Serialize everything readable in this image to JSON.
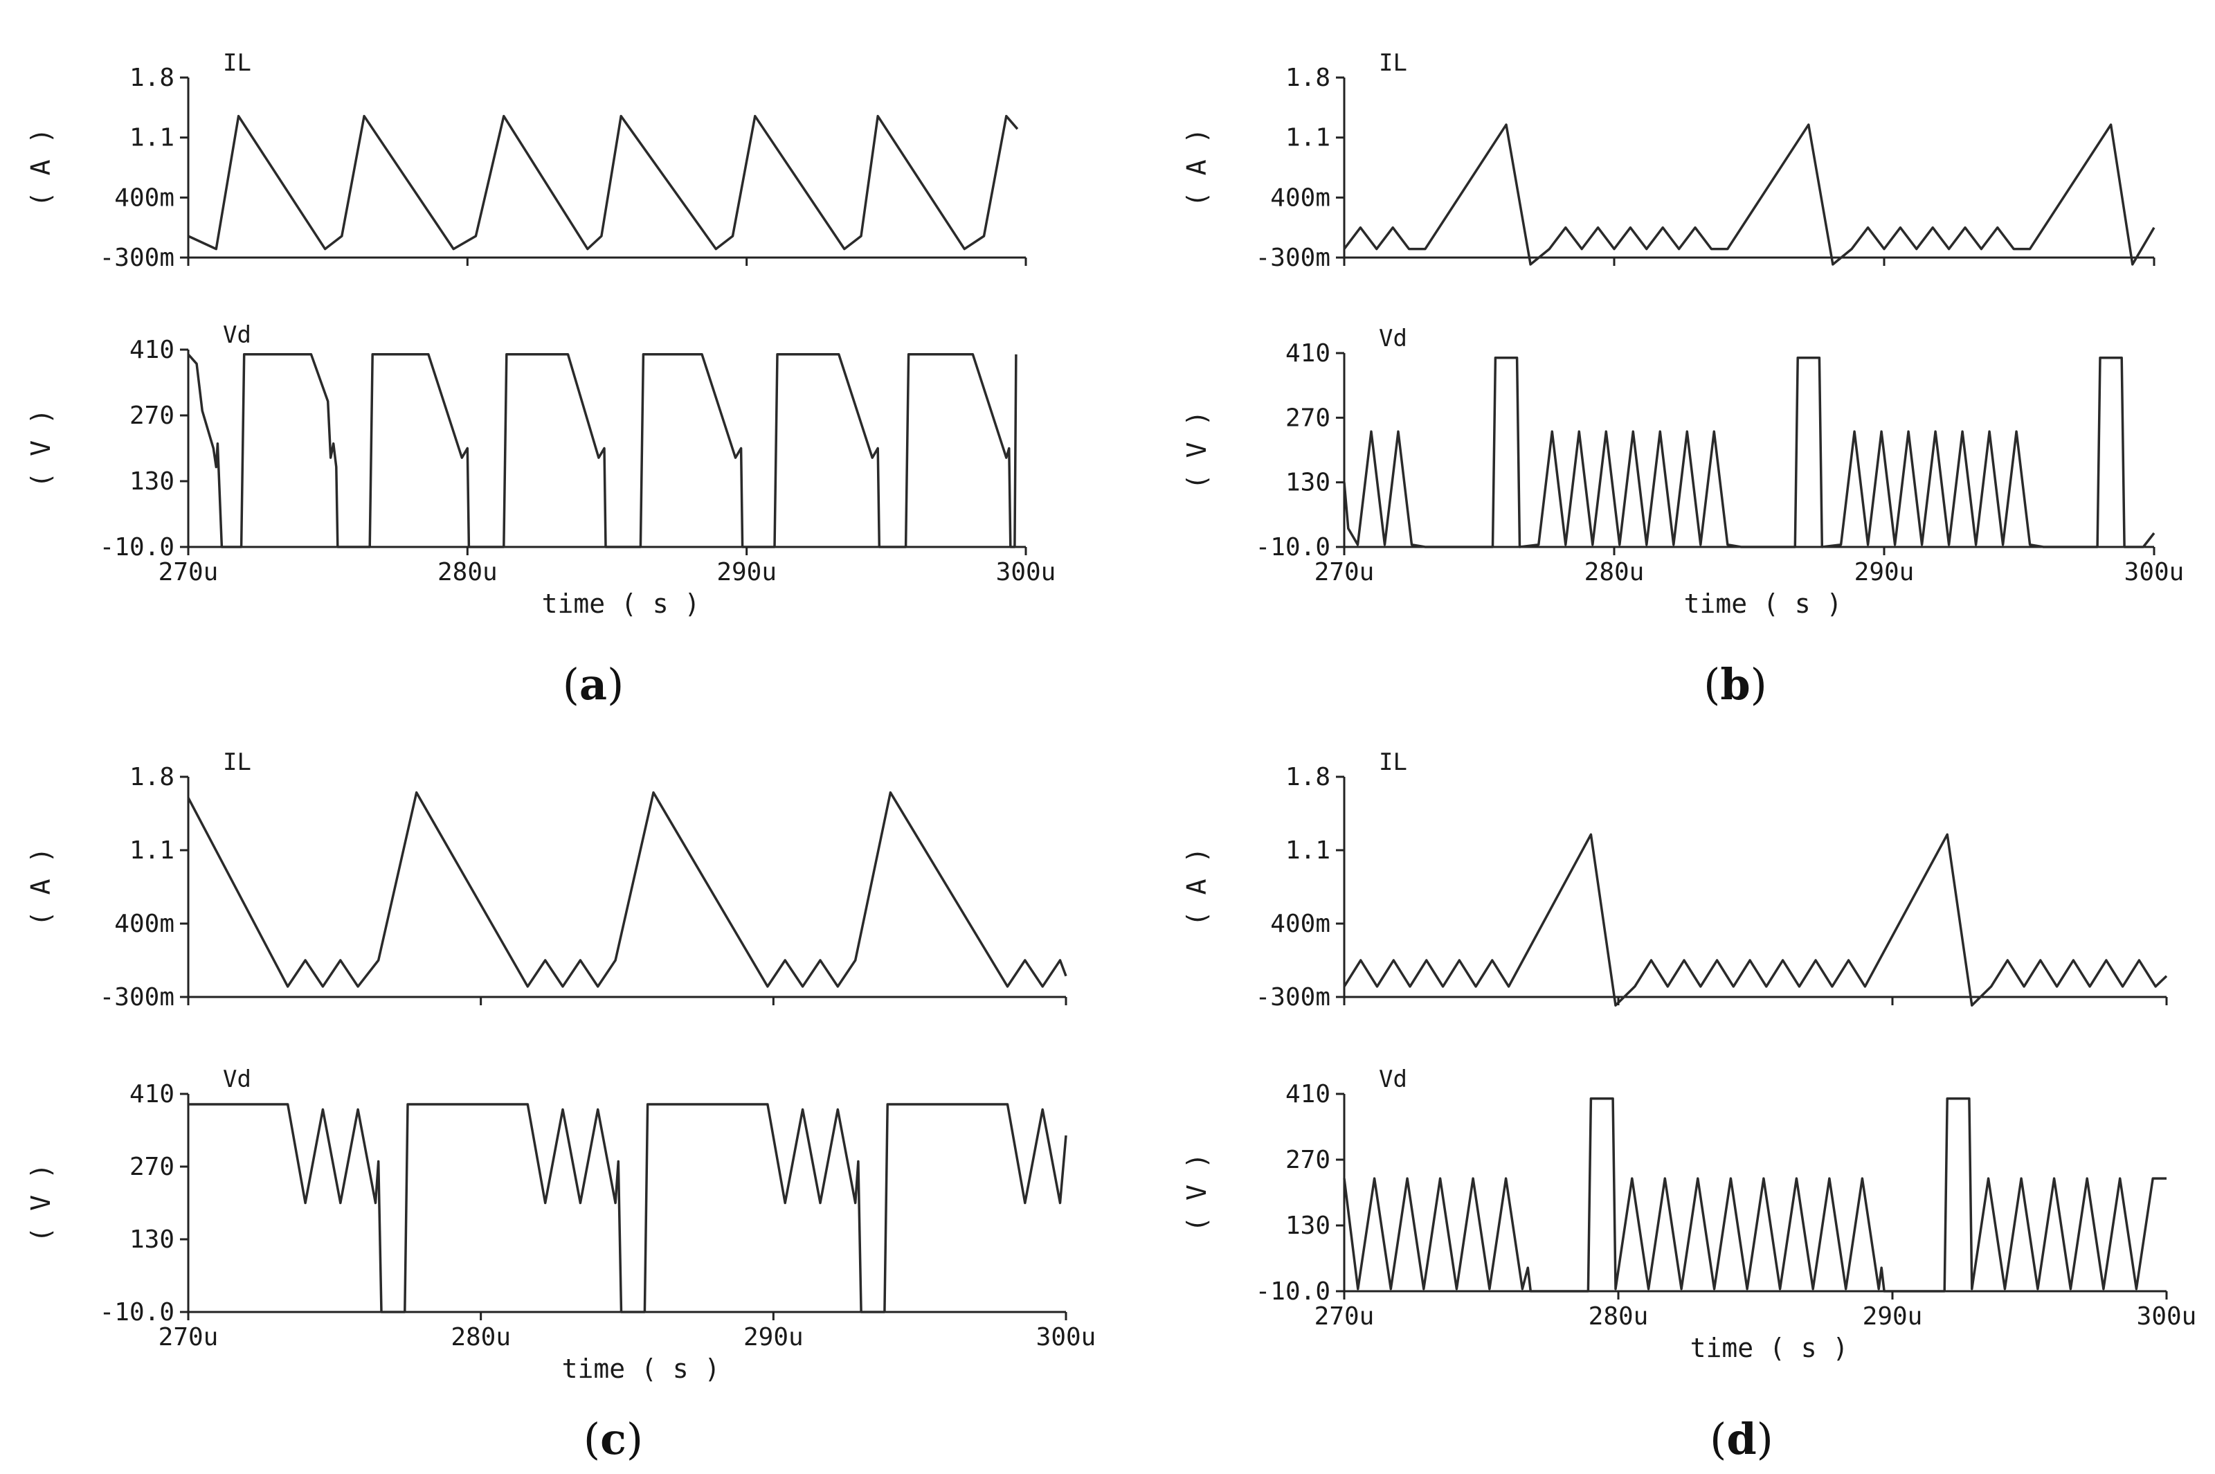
{
  "chart_data": [
    {
      "panel": "a",
      "type": "line",
      "caption_letter": "a",
      "xlabel": "time ( s )",
      "xlim": [
        270,
        300
      ],
      "x_unit": "u",
      "x_ticks": [
        "270u",
        "280u",
        "290u",
        "300u"
      ],
      "subplots": [
        {
          "name": "IL",
          "unit_label": "( A )",
          "ylim": [
            -0.3,
            1.8
          ],
          "y_ticks": [
            "1.8",
            "1.1",
            "400m",
            "-300m"
          ],
          "series": [
            {
              "name": "IL",
              "x": [
                270,
                271,
                271.8,
                274.9,
                275.5,
                276.3,
                279.5,
                280.3,
                281.3,
                284.3,
                284.8,
                285.5,
                288.9,
                289.5,
                290.3,
                293.5,
                294.1,
                294.7,
                297.8,
                298.5,
                299.3,
                299.7
              ],
              "y": [
                -0.05,
                -0.2,
                1.35,
                -0.2,
                -0.05,
                1.35,
                -0.2,
                -0.05,
                1.35,
                -0.2,
                -0.05,
                1.35,
                -0.2,
                -0.05,
                1.35,
                -0.2,
                -0.05,
                1.35,
                -0.2,
                -0.05,
                1.35,
                1.2
              ]
            }
          ]
        },
        {
          "name": "Vd",
          "unit_label": "( V )",
          "ylim": [
            -10,
            410
          ],
          "y_ticks": [
            "410",
            "270",
            "130",
            "-10.0"
          ],
          "series": [
            {
              "name": "Vd",
              "x": [
                270,
                270.3,
                270.5,
                270.9,
                271,
                271.05,
                271.2,
                271.9,
                272,
                274.4,
                275,
                275.1,
                275.2,
                275.3,
                275.35,
                276.5,
                276.6,
                278.6,
                279.8,
                280,
                280.05,
                281.3,
                281.4,
                283.6,
                284.7,
                284.9,
                284.95,
                286.2,
                286.3,
                288.4,
                289.6,
                289.8,
                289.85,
                291,
                291.1,
                293.3,
                294.5,
                294.7,
                294.75,
                295.7,
                295.8,
                298.1,
                299.3,
                299.4,
                299.45,
                299.6,
                299.65
              ],
              "y": [
                400,
                380,
                280,
                200,
                160,
                210,
                -10,
                -10,
                400,
                400,
                300,
                180,
                210,
                160,
                -10,
                -10,
                400,
                400,
                180,
                200,
                -10,
                -10,
                400,
                400,
                180,
                200,
                -10,
                -10,
                400,
                400,
                180,
                200,
                -10,
                -10,
                400,
                400,
                180,
                200,
                -10,
                -10,
                400,
                400,
                180,
                200,
                -10,
                -10,
                400
              ]
            }
          ]
        }
      ]
    },
    {
      "panel": "b",
      "type": "line",
      "caption_letter": "b",
      "xlabel": "time ( s )",
      "xlim": [
        270,
        300
      ],
      "x_unit": "u",
      "x_ticks": [
        "270u",
        "280u",
        "290u",
        "300u"
      ],
      "subplots": [
        {
          "name": "IL",
          "unit_label": "( A )",
          "ylim": [
            -0.3,
            1.8
          ],
          "y_ticks": [
            "1.8",
            "1.1",
            "400m",
            "-300m"
          ],
          "series": [
            {
              "name": "IL",
              "x": [
                270,
                270.6,
                271.2,
                271.8,
                272.4,
                273,
                276,
                276.9,
                277.6,
                278.2,
                278.8,
                279.4,
                280,
                280.6,
                281.2,
                281.8,
                282.4,
                283,
                283.6,
                284.2,
                287.2,
                288.1,
                288.8,
                289.4,
                290,
                290.6,
                291.2,
                291.8,
                292.4,
                293,
                293.6,
                294.2,
                294.8,
                295.4,
                298.4,
                299.2,
                300
              ],
              "y": [
                -0.2,
                0.05,
                -0.2,
                0.05,
                -0.2,
                -0.2,
                1.25,
                -0.38,
                -0.2,
                0.05,
                -0.2,
                0.05,
                -0.2,
                0.05,
                -0.2,
                0.05,
                -0.2,
                0.05,
                -0.2,
                -0.2,
                1.25,
                -0.38,
                -0.2,
                0.05,
                -0.2,
                0.05,
                -0.2,
                0.05,
                -0.2,
                0.05,
                -0.2,
                0.05,
                -0.2,
                -0.2,
                1.25,
                -0.38,
                0.05
              ]
            }
          ]
        },
        {
          "name": "Vd",
          "unit_label": "( V )",
          "ylim": [
            -10,
            410
          ],
          "y_ticks": [
            "410",
            "270",
            "130",
            "-10.0"
          ],
          "series": [
            {
              "name": "Vd",
              "x": [
                270,
                270.15,
                270.5,
                271,
                271.5,
                272,
                272.5,
                273,
                273.5,
                275.5,
                275.6,
                276.4,
                276.5,
                277.2,
                277.7,
                278.2,
                278.7,
                279.2,
                279.7,
                280.2,
                280.7,
                281.2,
                281.7,
                282.2,
                282.7,
                283.2,
                283.7,
                284.2,
                284.7,
                286.7,
                286.8,
                287.6,
                287.7,
                288.4,
                288.9,
                289.4,
                289.9,
                290.4,
                290.9,
                291.4,
                291.9,
                292.4,
                292.9,
                293.4,
                293.9,
                294.4,
                294.9,
                295.4,
                295.9,
                297.9,
                298,
                298.8,
                298.9,
                299.6,
                300
              ],
              "y": [
                130,
                30,
                -5,
                240,
                -5,
                240,
                -5,
                -10,
                -10,
                -10,
                400,
                400,
                -10,
                -5,
                240,
                -5,
                240,
                -5,
                240,
                -5,
                240,
                -5,
                240,
                -5,
                240,
                -5,
                240,
                -5,
                -10,
                -10,
                400,
                400,
                -10,
                -5,
                240,
                -5,
                240,
                -5,
                240,
                -5,
                240,
                -5,
                240,
                -5,
                240,
                -5,
                240,
                -5,
                -10,
                -10,
                400,
                400,
                -10,
                -10,
                20
              ]
            }
          ]
        }
      ]
    },
    {
      "panel": "c",
      "type": "line",
      "caption_letter": "c",
      "xlabel": "time ( s )",
      "xlim": [
        270,
        300
      ],
      "x_unit": "u",
      "x_ticks": [
        "270u",
        "280u",
        "290u",
        "300u"
      ],
      "subplots": [
        {
          "name": "IL",
          "unit_label": "( A )",
          "ylim": [
            -0.3,
            1.8
          ],
          "y_ticks": [
            "1.8",
            "1.1",
            "400m",
            "-300m"
          ],
          "series": [
            {
              "name": "IL",
              "x": [
                270,
                273.4,
                274,
                274.6,
                275.2,
                275.8,
                276.5,
                277.8,
                281.6,
                282.2,
                282.8,
                283.4,
                284,
                284.6,
                285.9,
                289.8,
                290.4,
                291,
                291.6,
                292.2,
                292.8,
                294,
                298,
                298.6,
                299.2,
                299.8,
                300
              ],
              "y": [
                1.6,
                -0.2,
                0.05,
                -0.2,
                0.05,
                -0.2,
                0.05,
                1.65,
                -0.2,
                0.05,
                -0.2,
                0.05,
                -0.2,
                0.05,
                1.65,
                -0.2,
                0.05,
                -0.2,
                0.05,
                -0.2,
                0.05,
                1.65,
                -0.2,
                0.05,
                -0.2,
                0.05,
                -0.1
              ]
            }
          ]
        },
        {
          "name": "Vd",
          "unit_label": "( V )",
          "ylim": [
            -10,
            410
          ],
          "y_ticks": [
            "410",
            "270",
            "130",
            "-10.0"
          ],
          "series": [
            {
              "name": "Vd",
              "x": [
                270,
                273.4,
                274,
                274.6,
                275.2,
                275.8,
                276.4,
                276.5,
                276.6,
                277.4,
                277.5,
                281.6,
                282.2,
                282.8,
                283.4,
                284,
                284.6,
                284.7,
                284.8,
                285.6,
                285.7,
                289.8,
                290.4,
                291,
                291.6,
                292.2,
                292.8,
                292.9,
                293,
                293.8,
                293.9,
                298,
                298.6,
                299.2,
                299.8,
                300
              ],
              "y": [
                390,
                390,
                200,
                380,
                200,
                380,
                200,
                280,
                -10,
                -10,
                390,
                390,
                200,
                380,
                200,
                380,
                200,
                280,
                -10,
                -10,
                390,
                390,
                200,
                380,
                200,
                380,
                200,
                280,
                -10,
                -10,
                390,
                390,
                200,
                380,
                200,
                330
              ]
            }
          ]
        }
      ]
    },
    {
      "panel": "d",
      "type": "line",
      "caption_letter": "d",
      "xlabel": "time ( s )",
      "xlim": [
        270,
        300
      ],
      "x_unit": "u",
      "x_ticks": [
        "270u",
        "280u",
        "290u",
        "300u"
      ],
      "subplots": [
        {
          "name": "IL",
          "unit_label": "( A )",
          "ylim": [
            -0.3,
            1.8
          ],
          "y_ticks": [
            "1.8",
            "1.1",
            "400m",
            "-300m"
          ],
          "series": [
            {
              "name": "IL",
              "x": [
                270,
                270.6,
                271.2,
                271.8,
                272.4,
                273,
                273.6,
                274.2,
                274.8,
                275.4,
                276,
                279,
                279.9,
                280.6,
                281.2,
                281.8,
                282.4,
                283,
                283.6,
                284.2,
                284.8,
                285.4,
                286,
                286.6,
                287.2,
                287.8,
                288.4,
                289,
                292,
                292.9,
                293.6,
                294.2,
                294.8,
                295.4,
                296,
                296.6,
                297.2,
                297.8,
                298.4,
                299,
                299.6,
                300
              ],
              "y": [
                -0.2,
                0.05,
                -0.2,
                0.05,
                -0.2,
                0.05,
                -0.2,
                0.05,
                -0.2,
                0.05,
                -0.2,
                1.25,
                -0.38,
                -0.2,
                0.05,
                -0.2,
                0.05,
                -0.2,
                0.05,
                -0.2,
                0.05,
                -0.2,
                0.05,
                -0.2,
                0.05,
                -0.2,
                0.05,
                -0.2,
                1.25,
                -0.38,
                -0.2,
                0.05,
                -0.2,
                0.05,
                -0.2,
                0.05,
                -0.2,
                0.05,
                -0.2,
                0.05,
                -0.2,
                -0.1
              ]
            }
          ]
        },
        {
          "name": "Vd",
          "unit_label": "( V )",
          "ylim": [
            -10,
            410
          ],
          "y_ticks": [
            "410",
            "270",
            "130",
            "-10.0"
          ],
          "series": [
            {
              "name": "Vd",
              "x": [
                270,
                270.5,
                271.1,
                271.7,
                272.3,
                272.9,
                273.5,
                274.1,
                274.7,
                275.3,
                275.9,
                276.5,
                276.7,
                276.8,
                278.9,
                279,
                279.8,
                279.9,
                280.5,
                281.1,
                281.7,
                282.3,
                282.9,
                283.5,
                284.1,
                284.7,
                285.3,
                285.9,
                286.5,
                287.1,
                287.7,
                288.3,
                288.9,
                289.5,
                289.6,
                289.7,
                291.9,
                292,
                292.8,
                292.9,
                293.5,
                294.1,
                294.7,
                295.3,
                295.9,
                296.5,
                297.1,
                297.7,
                298.3,
                298.9,
                299.5,
                300
              ],
              "y": [
                230,
                -5,
                230,
                -5,
                230,
                -5,
                230,
                -5,
                230,
                -5,
                230,
                -5,
                40,
                -10,
                -10,
                400,
                400,
                -5,
                230,
                -5,
                230,
                -5,
                230,
                -5,
                230,
                -5,
                230,
                -5,
                230,
                -5,
                230,
                -5,
                230,
                -5,
                40,
                -10,
                -10,
                400,
                400,
                -5,
                230,
                -5,
                230,
                -5,
                230,
                -5,
                230,
                -5,
                230,
                -5,
                230,
                230
              ]
            }
          ]
        }
      ]
    }
  ]
}
